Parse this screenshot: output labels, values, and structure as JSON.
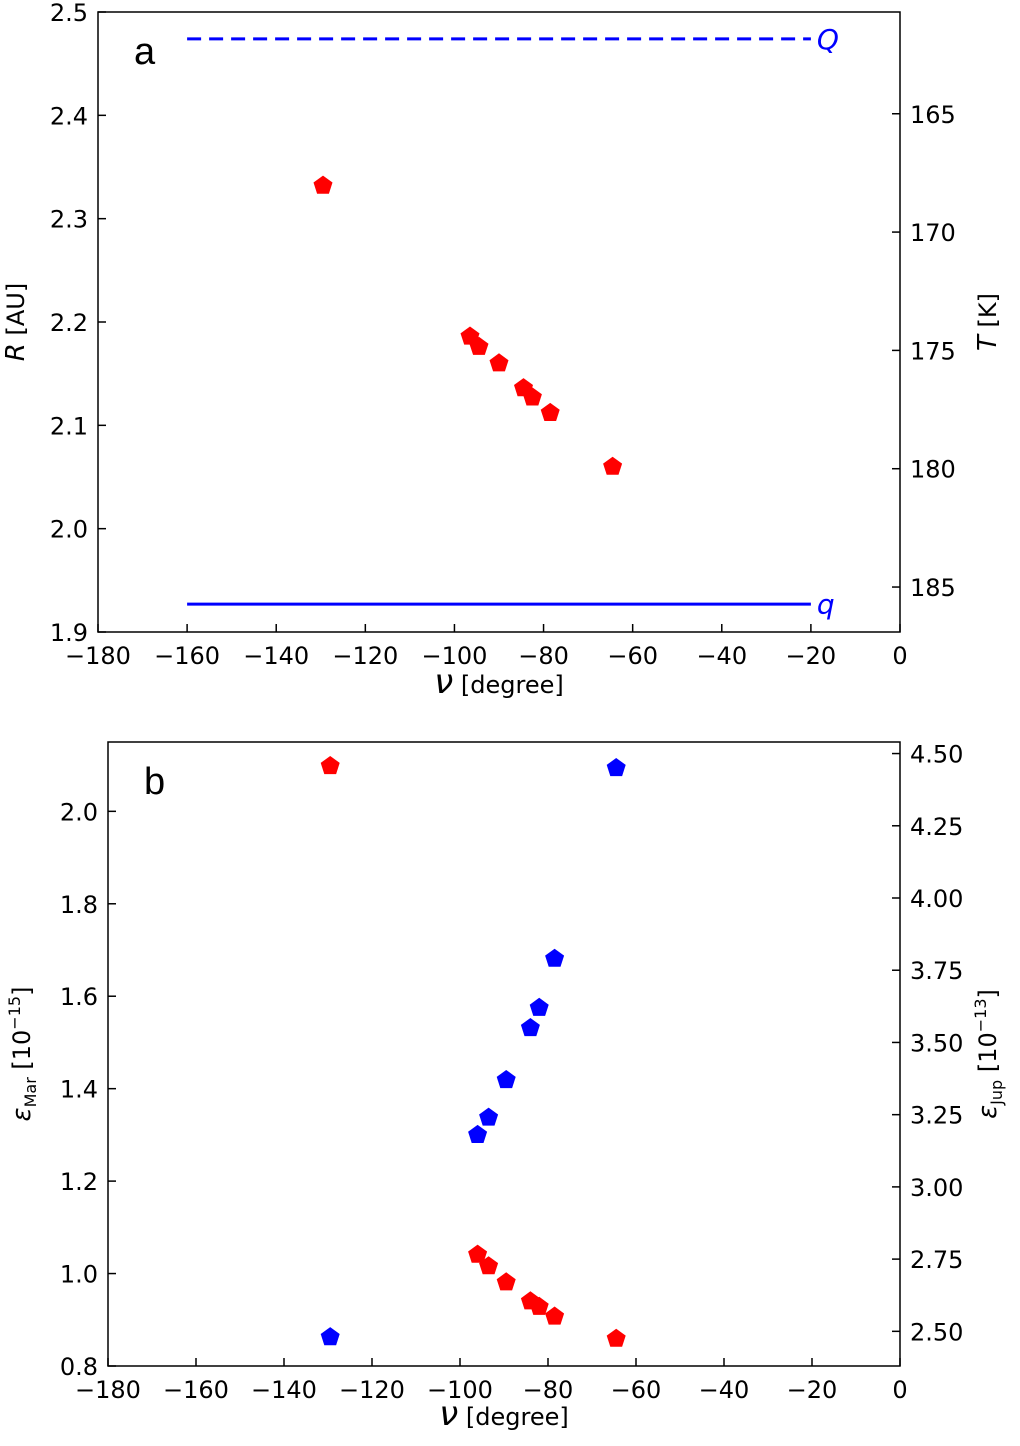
{
  "colors": {
    "red": "#ff0000",
    "blue": "#0000ff",
    "axis": "#000000"
  },
  "chart_data": [
    {
      "type": "scatter",
      "panel_label": "a",
      "xlabel": {
        "symbol": "ν",
        "unit": " [degree]"
      },
      "ylabel": {
        "symbol": "R",
        "unit": " [AU]"
      },
      "y2label": {
        "symbol": "T",
        "unit": " [K]"
      },
      "xlim": [
        -180,
        0
      ],
      "ylim": [
        1.9,
        2.5
      ],
      "y2lim": [
        186.9,
        160.7
      ],
      "xticks": [
        -180,
        -160,
        -140,
        -120,
        -100,
        -80,
        -60,
        -40,
        -20,
        0
      ],
      "xtick_labels": [
        "−180",
        "−160",
        "−140",
        "−120",
        "−100",
        "−80",
        "−60",
        "−40",
        "−20",
        "0"
      ],
      "yticks": [
        1.9,
        2.0,
        2.1,
        2.2,
        2.3,
        2.4,
        2.5
      ],
      "ytick_labels": [
        "1.9",
        "2.0",
        "2.1",
        "2.2",
        "2.3",
        "2.4",
        "2.5"
      ],
      "y2ticks": [
        165,
        170,
        175,
        180,
        185
      ],
      "y2tick_labels": [
        "165",
        "170",
        "175",
        "180",
        "185"
      ],
      "lines": [
        {
          "name": "Q",
          "y": 2.474,
          "x": [
            -160,
            -20
          ],
          "style": "dashed",
          "color": "#0000ff"
        },
        {
          "name": "q",
          "y": 1.927,
          "x": [
            -160,
            -20
          ],
          "style": "solid",
          "color": "#0000ff"
        }
      ],
      "series": [
        {
          "color": "#ff0000",
          "axis": "left",
          "x": [
            -129.5,
            -96.5,
            -94.5,
            -90,
            -84.5,
            -82.5,
            -78.5,
            -64.5
          ],
          "y": [
            2.332,
            2.186,
            2.176,
            2.16,
            2.136,
            2.127,
            2.112,
            2.06
          ]
        }
      ],
      "grid": false
    },
    {
      "type": "scatter",
      "panel_label": "b",
      "xlabel": {
        "symbol": "ν",
        "unit": " [degree]"
      },
      "ylabel": {
        "symbol": "ε",
        "sub": "Mar",
        "unit": "  [10",
        "sup": "−15",
        "close": "]"
      },
      "y2label": {
        "symbol": "ε",
        "sub": "Jup",
        "unit": "  [10",
        "sup": "−13",
        "close": "]"
      },
      "xlim": [
        -180,
        0
      ],
      "ylim": [
        0.8,
        2.15
      ],
      "y2lim": [
        2.38,
        4.54
      ],
      "xticks": [
        -180,
        -160,
        -140,
        -120,
        -100,
        -80,
        -60,
        -40,
        -20,
        0
      ],
      "xtick_labels": [
        "−180",
        "−160",
        "−140",
        "−120",
        "−100",
        "−80",
        "−60",
        "−40",
        "−20",
        "0"
      ],
      "yticks": [
        0.8,
        1.0,
        1.2,
        1.4,
        1.6,
        1.8,
        2.0
      ],
      "ytick_labels": [
        "0.8",
        "1.0",
        "1.2",
        "1.4",
        "1.6",
        "1.8",
        "2.0"
      ],
      "y2ticks": [
        2.5,
        2.75,
        3.0,
        3.25,
        3.5,
        3.75,
        4.0,
        4.25,
        4.5
      ],
      "y2tick_labels": [
        "2.50",
        "2.75",
        "3.00",
        "3.25",
        "3.50",
        "3.75",
        "4.00",
        "4.25",
        "4.50"
      ],
      "series": [
        {
          "color": "#ff0000",
          "axis": "left",
          "x": [
            -129.5,
            -96,
            -93.5,
            -89.5,
            -84,
            -82,
            -78.5,
            -64.5
          ],
          "y": [
            2.098,
            1.041,
            1.016,
            0.981,
            0.94,
            0.928,
            0.907,
            0.859
          ]
        },
        {
          "color": "#0000ff",
          "axis": "right",
          "x": [
            -129.5,
            -96,
            -93.5,
            -89.5,
            -84,
            -82,
            -78.5,
            -64.5
          ],
          "y": [
            2.48,
            3.18,
            3.24,
            3.37,
            3.55,
            3.62,
            3.79,
            4.45
          ]
        }
      ],
      "grid": false
    }
  ]
}
